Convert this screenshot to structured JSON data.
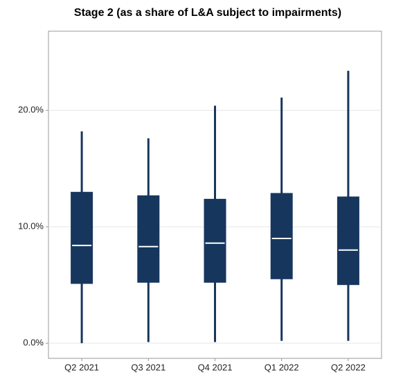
{
  "chart_data": {
    "type": "box",
    "title": "Stage 2 (as a share of L&A subject to impairments)",
    "categories": [
      "Q2 2021",
      "Q3 2021",
      "Q4 2021",
      "Q1 2022",
      "Q2 2022"
    ],
    "min": [
      0.0,
      0.1,
      0.1,
      0.2,
      0.2
    ],
    "q1": [
      5.1,
      5.2,
      5.2,
      5.5,
      5.0
    ],
    "median": [
      8.4,
      8.3,
      8.6,
      9.0,
      8.0
    ],
    "q3": [
      13.0,
      12.7,
      12.4,
      12.9,
      12.6
    ],
    "max": [
      18.2,
      17.6,
      20.4,
      21.1,
      23.4
    ],
    "color": "#17365d",
    "median_color": "#ffffff",
    "ylim": [
      -1.3,
      26.8
    ],
    "yticks": [
      {
        "value": 0,
        "label": "0.0%"
      },
      {
        "value": 10,
        "label": "10.0%"
      },
      {
        "value": 20,
        "label": "20.0%"
      }
    ],
    "grid": true
  }
}
